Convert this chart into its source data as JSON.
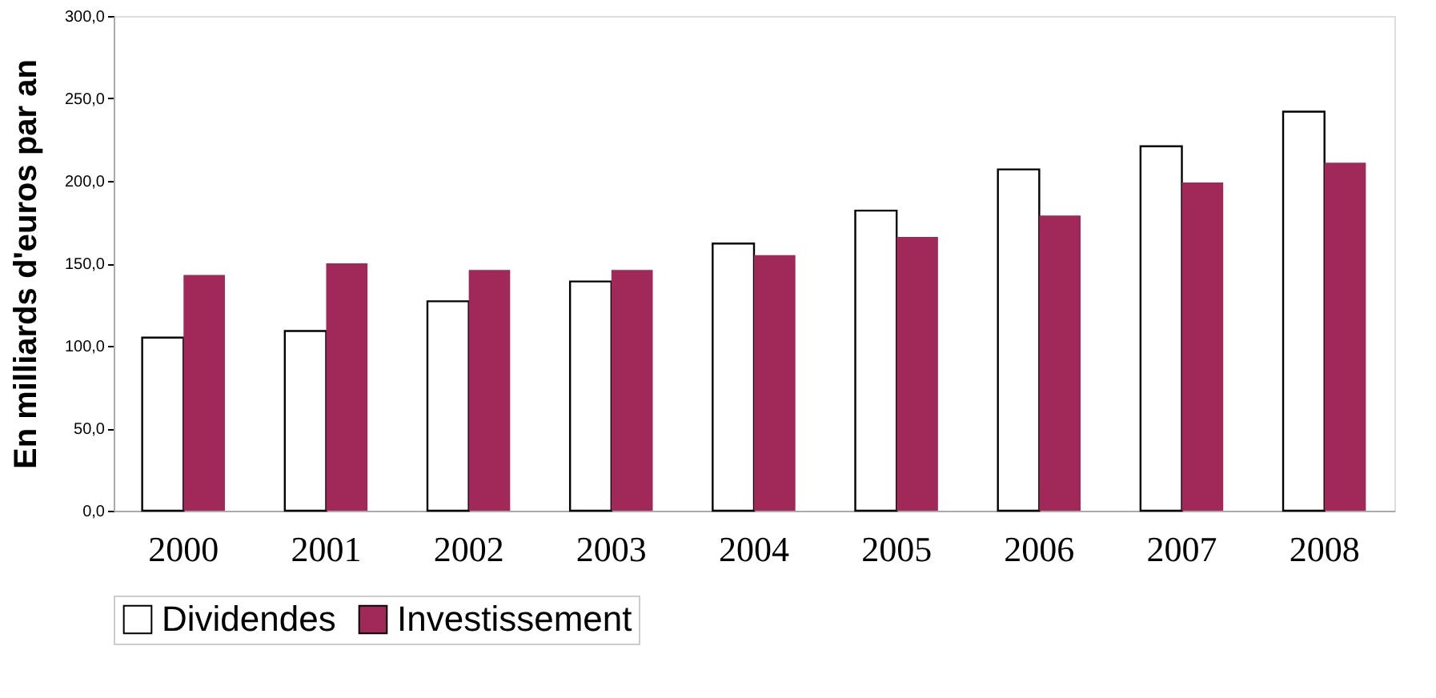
{
  "chart_data": {
    "type": "bar",
    "ylabel": "En milliards d'euros par an",
    "categories": [
      "2000",
      "2001",
      "2002",
      "2003",
      "2004",
      "2005",
      "2006",
      "2007",
      "2008"
    ],
    "series": [
      {
        "name": "Dividendes",
        "color": "#ffffff",
        "values": [
          105,
          109,
          127,
          139,
          162,
          182,
          207,
          221,
          242
        ]
      },
      {
        "name": "Investissement",
        "color": "#a0295a",
        "values": [
          143,
          150,
          146,
          146,
          155,
          166,
          179,
          199,
          211
        ]
      }
    ],
    "ylim": [
      0,
      300
    ],
    "yticks": [
      {
        "value": 0,
        "label": "0,0"
      },
      {
        "value": 50,
        "label": "50,0"
      },
      {
        "value": 100,
        "label": "100,0"
      },
      {
        "value": 150,
        "label": "150,0"
      },
      {
        "value": 200,
        "label": "200,0"
      },
      {
        "value": 250,
        "label": "250,0"
      },
      {
        "value": 300,
        "label": "300,0"
      }
    ],
    "grid": false,
    "legend": "bottom"
  }
}
